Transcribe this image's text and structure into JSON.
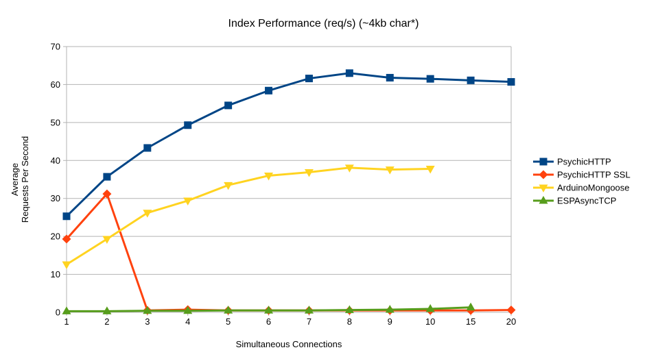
{
  "page": {
    "background": "#ffffff",
    "text_color": "#000000",
    "axis_color": "#b3b3b3"
  },
  "chart_data": {
    "type": "line",
    "title": "Index Performance (req/s) (~4kb char*)",
    "xlabel": "Simultaneous Connections",
    "ylabel_lines": [
      "Average",
      "Requests Per Second"
    ],
    "categories": [
      "1",
      "2",
      "3",
      "4",
      "5",
      "6",
      "7",
      "8",
      "9",
      "10",
      "15",
      "20"
    ],
    "ylim": [
      0,
      70
    ],
    "ytick_step": 10,
    "yticks": [
      "0",
      "10",
      "20",
      "30",
      "40",
      "50",
      "60",
      "70"
    ],
    "grid": true,
    "legend_position": "right",
    "series": [
      {
        "name": "PsychicHTTP",
        "color": "#004586",
        "marker": "square",
        "values": [
          25.3,
          35.7,
          43.3,
          49.3,
          54.5,
          58.4,
          61.6,
          63.0,
          61.8,
          61.5,
          61.1,
          60.7
        ]
      },
      {
        "name": "PsychicHTTP SSL",
        "color": "#FF420E",
        "marker": "diamond",
        "values": [
          19.3,
          31.2,
          0.5,
          0.7,
          0.5,
          0.5,
          0.5,
          0.5,
          0.5,
          0.5,
          0.5,
          0.6
        ]
      },
      {
        "name": "ArduinoMongoose",
        "color": "#FFD320",
        "marker": "triangle-down",
        "values": [
          12.6,
          19.3,
          26.2,
          29.4,
          33.5,
          36.0,
          36.9,
          38.1,
          37.6,
          37.8,
          null,
          null
        ]
      },
      {
        "name": "ESPAsyncTCP",
        "color": "#579D1C",
        "marker": "triangle-up",
        "values": [
          0.3,
          0.3,
          0.4,
          0.4,
          0.5,
          0.5,
          0.5,
          0.6,
          0.7,
          0.9,
          1.3,
          null
        ]
      }
    ]
  }
}
